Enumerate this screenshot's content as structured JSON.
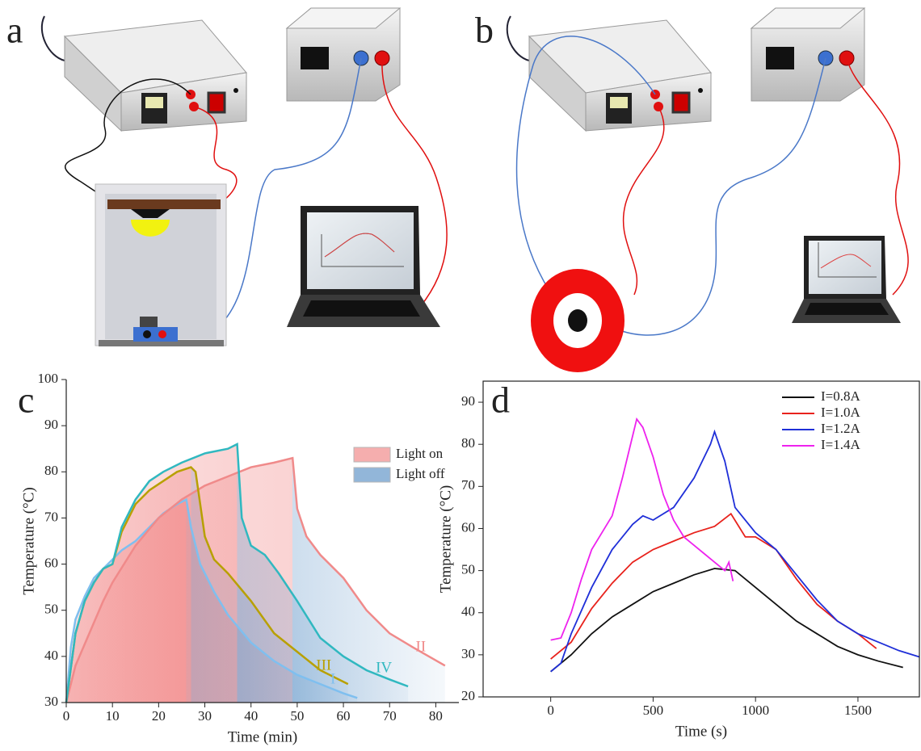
{
  "diagrams": [
    {
      "label": "a"
    },
    {
      "label": "b"
    }
  ],
  "chart_data": [
    {
      "type": "line",
      "label": "c",
      "xlabel": "Time (min)",
      "ylabel": "Temperature (°C)",
      "xlim": [
        0,
        85
      ],
      "ylim": [
        30,
        100
      ],
      "xticks": [
        0,
        10,
        20,
        30,
        40,
        50,
        60,
        70,
        80
      ],
      "yticks": [
        30,
        40,
        50,
        60,
        70,
        80,
        90,
        100
      ],
      "area_legend": [
        {
          "name": "Light on",
          "color": "#f07a7a"
        },
        {
          "name": "Light off",
          "color": "#4a86c0"
        }
      ],
      "series": [
        {
          "name": "I",
          "color": "#7fbfef",
          "x": [
            0,
            1,
            2,
            4,
            6,
            8,
            10,
            12,
            15,
            18,
            21,
            24,
            26,
            27,
            29,
            32,
            35,
            40,
            45,
            50,
            55,
            60,
            63
          ],
          "values": [
            30,
            42,
            48,
            53,
            57,
            59,
            61,
            63,
            65,
            68,
            71,
            73,
            74,
            68,
            60,
            54,
            49,
            43,
            39,
            36,
            34,
            32,
            31
          ]
        },
        {
          "name": "II",
          "color": "#f08a8a",
          "x": [
            0,
            2,
            5,
            8,
            10,
            15,
            20,
            25,
            30,
            35,
            40,
            45,
            49,
            50,
            52,
            55,
            60,
            65,
            70,
            75,
            82
          ],
          "values": [
            30,
            38,
            45,
            52,
            56,
            64,
            70,
            74,
            77,
            79,
            81,
            82,
            83,
            72,
            66,
            62,
            57,
            50,
            45,
            42,
            38
          ]
        },
        {
          "name": "III",
          "color": "#b8a000",
          "x": [
            0,
            2,
            4,
            6,
            8,
            10,
            12,
            15,
            18,
            21,
            24,
            27,
            28,
            30,
            32,
            35,
            40,
            45,
            50,
            55,
            61
          ],
          "values": [
            30,
            45,
            52,
            56,
            59,
            60,
            67,
            73,
            76,
            78,
            80,
            81,
            80,
            66,
            61,
            58,
            52,
            45,
            41,
            37,
            34
          ]
        },
        {
          "name": "IV",
          "color": "#30b8c0",
          "x": [
            0,
            2,
            4,
            6,
            8,
            10,
            12,
            15,
            18,
            21,
            25,
            30,
            35,
            37,
            38,
            40,
            43,
            46,
            50,
            55,
            60,
            65,
            70,
            74
          ],
          "values": [
            30,
            45,
            52,
            56,
            59,
            60,
            68,
            74,
            78,
            80,
            82,
            84,
            85,
            86,
            70,
            64,
            62,
            58,
            52,
            44,
            40,
            37,
            35,
            33.5
          ]
        }
      ]
    },
    {
      "type": "line",
      "label": "d",
      "xlabel": "Time (s)",
      "ylabel": "Temperature (°C)",
      "xlim": [
        -330,
        1800
      ],
      "ylim": [
        20,
        95
      ],
      "xticks": [
        0,
        500,
        1000,
        1500
      ],
      "yticks": [
        20,
        30,
        40,
        50,
        60,
        70,
        80,
        90
      ],
      "series": [
        {
          "name": "I=0.8A",
          "color": "#111111",
          "x": [
            0,
            100,
            200,
            300,
            400,
            500,
            600,
            700,
            800,
            900,
            1000,
            1100,
            1200,
            1300,
            1400,
            1500,
            1600,
            1720
          ],
          "values": [
            26,
            30,
            35,
            39,
            42,
            45,
            47,
            49,
            50.5,
            50,
            46,
            42,
            38,
            35,
            32,
            30,
            28.5,
            27
          ]
        },
        {
          "name": "I=1.0A",
          "color": "#e8221c",
          "x": [
            0,
            100,
            200,
            300,
            400,
            500,
            600,
            700,
            800,
            880,
            950,
            1000,
            1100,
            1200,
            1300,
            1400,
            1500,
            1590
          ],
          "values": [
            29,
            33,
            41,
            47,
            52,
            55,
            57,
            59,
            60.5,
            63.5,
            58,
            58,
            55,
            48,
            42,
            38,
            35,
            31.5
          ]
        },
        {
          "name": "I=1.2A",
          "color": "#1f2fd8",
          "x": [
            0,
            50,
            100,
            200,
            300,
            400,
            450,
            500,
            600,
            700,
            780,
            800,
            850,
            900,
            1000,
            1100,
            1200,
            1300,
            1400,
            1500,
            1600,
            1700,
            1800
          ],
          "values": [
            26,
            28,
            35,
            46,
            55,
            61,
            63,
            62,
            65,
            72,
            80,
            83,
            76,
            65,
            59,
            55,
            49,
            43,
            38,
            35,
            33,
            31,
            29.5
          ]
        },
        {
          "name": "I=1.4A",
          "color": "#ee22ee",
          "x": [
            0,
            50,
            100,
            150,
            200,
            250,
            300,
            350,
            400,
            420,
            450,
            500,
            550,
            600,
            650,
            700,
            750,
            800,
            850,
            870,
            890
          ],
          "values": [
            33.5,
            34,
            40,
            48,
            55,
            59,
            63,
            72,
            82,
            86,
            84,
            77,
            68,
            62,
            58,
            56,
            54,
            52,
            50,
            52,
            47.5
          ]
        }
      ]
    }
  ]
}
